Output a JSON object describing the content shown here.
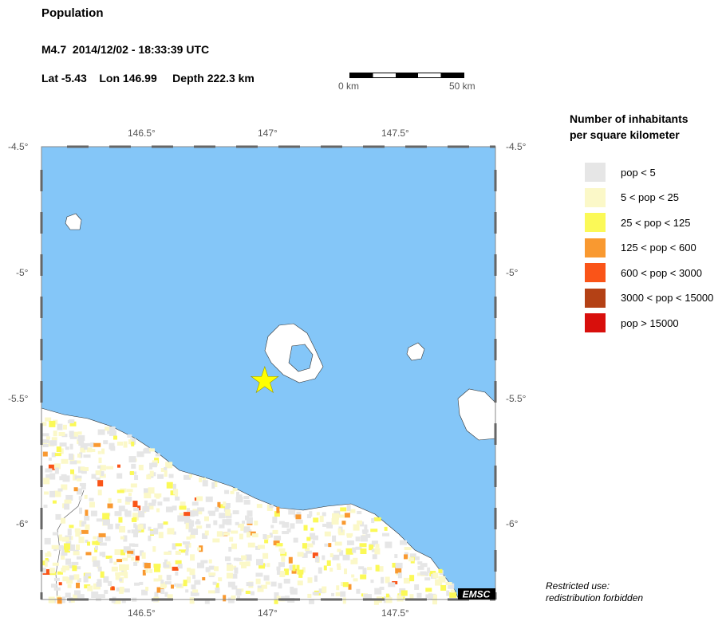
{
  "header": {
    "title": "Population",
    "event": "M4.7  2014/12/02 - 18:33:39 UTC",
    "location": "Lat -5.43    Lon 146.99     Depth 222.3 km"
  },
  "scale_bar": {
    "start": "0 km",
    "end": "50 km"
  },
  "map": {
    "lon_ticks": [
      "146.5°",
      "147°",
      "147.5°"
    ],
    "lat_ticks": [
      "-4.5°",
      "-5°",
      "-5.5°",
      "-6°"
    ],
    "epicenter": {
      "lat": -5.43,
      "lon": 146.99,
      "marker": "star",
      "color": "#ffff00"
    },
    "sea_color": "#84c6f8",
    "badge": "EMSC"
  },
  "legend": {
    "title_line1": "Number of inhabitants",
    "title_line2": "per square kilometer",
    "items": [
      {
        "label": "pop < 5",
        "color": "#e6e6e6"
      },
      {
        "label": "5 < pop < 25",
        "color": "#fbf8c8"
      },
      {
        "label": "25 < pop < 125",
        "color": "#fbf957"
      },
      {
        "label": "125 < pop < 600",
        "color": "#f99930"
      },
      {
        "label": "600 < pop < 3000",
        "color": "#fa5418"
      },
      {
        "label": "3000 < pop < 15000",
        "color": "#b44115"
      },
      {
        "label": "pop > 15000",
        "color": "#d80f0c"
      }
    ]
  },
  "note": {
    "line1": "Restricted use:",
    "line2": "redistribution forbidden"
  }
}
